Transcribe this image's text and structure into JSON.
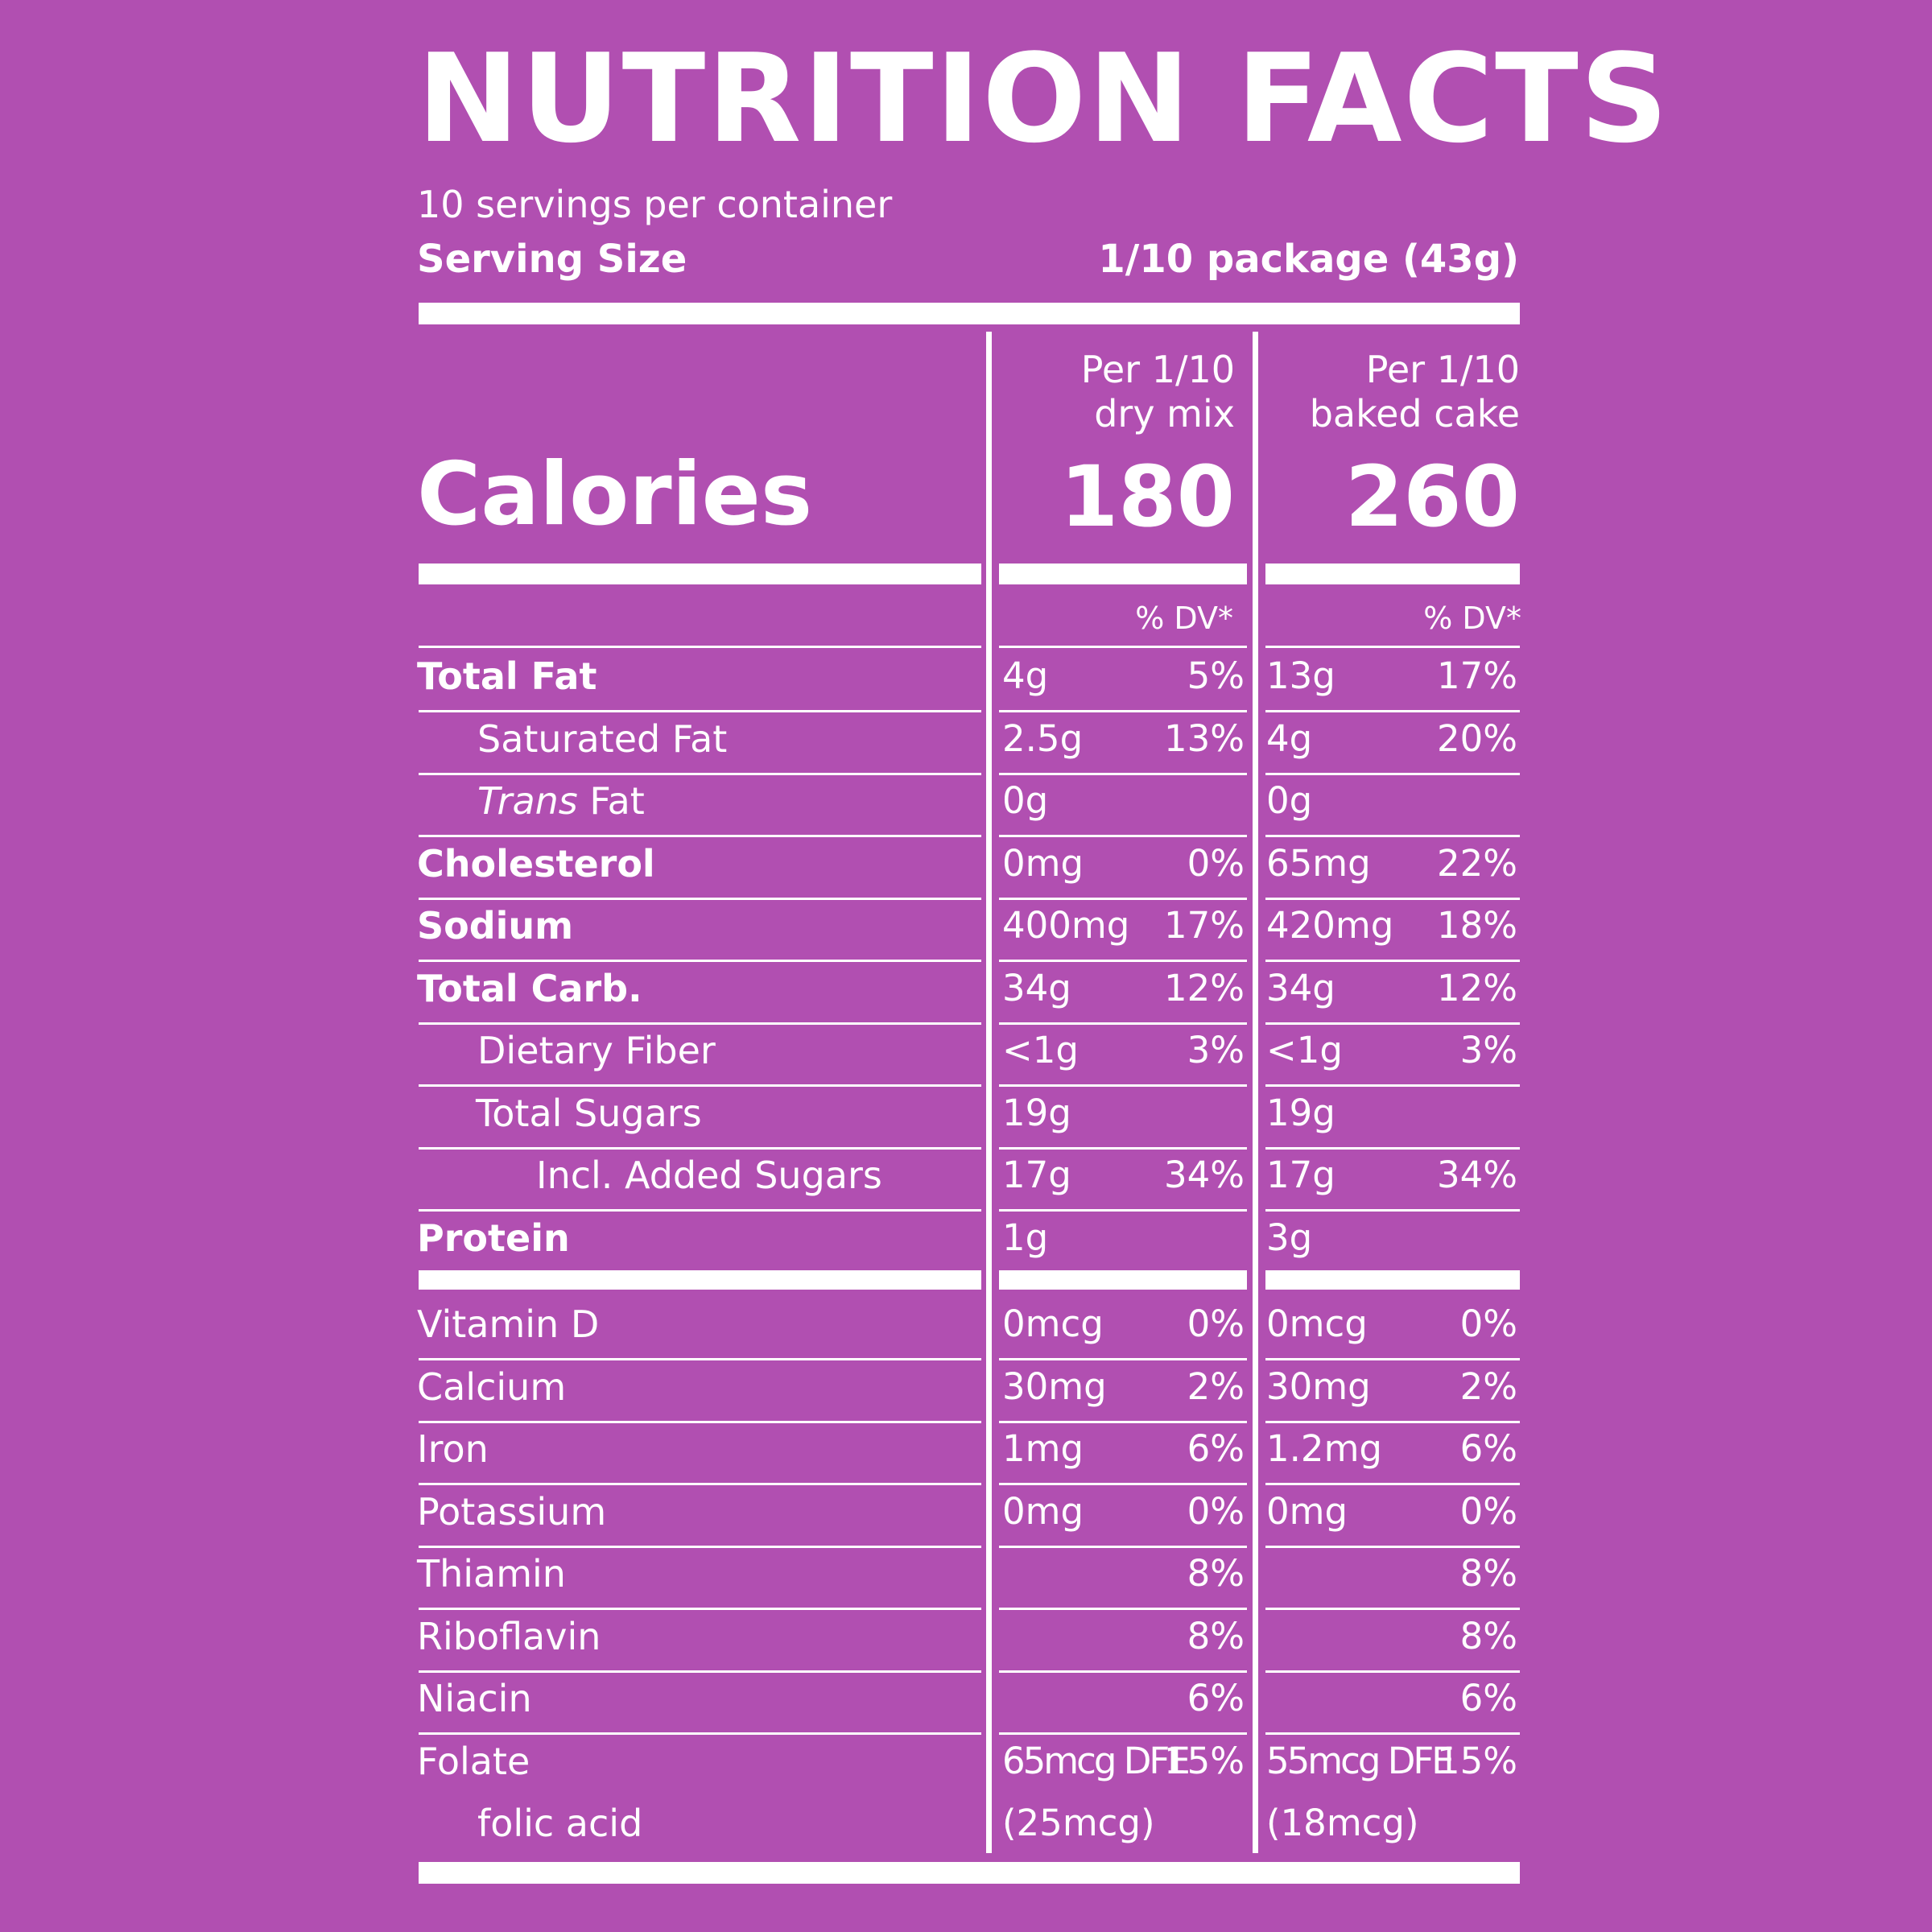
{
  "header": {
    "title": "NUTRITION FACTS",
    "servings_per_container": "10 servings per container",
    "serving_size_label": "Serving Size",
    "serving_size_value": "1/10 package (43g)"
  },
  "columns": [
    {
      "line1": "Per 1/10",
      "line2": "dry mix",
      "calories": "180",
      "dv_header": "% DV*"
    },
    {
      "line1": "Per 1/10",
      "line2": "baked cake",
      "calories": "260",
      "dv_header": "% DV*"
    }
  ],
  "calories_label": "Calories",
  "nutrients": [
    {
      "label": "Total Fat",
      "mix_amt": "4g",
      "mix_dv": "5%",
      "cake_amt": "13g",
      "cake_dv": "17%"
    },
    {
      "label": "Saturated Fat",
      "mix_amt": "2.5g",
      "mix_dv": "13%",
      "cake_amt": "4g",
      "cake_dv": "20%"
    },
    {
      "label_italic": "Trans",
      "label_rest": " Fat",
      "mix_amt": "0g",
      "mix_dv": "",
      "cake_amt": "0g",
      "cake_dv": ""
    },
    {
      "label": "Cholesterol",
      "mix_amt": "0mg",
      "mix_dv": "0%",
      "cake_amt": "65mg",
      "cake_dv": "22%"
    },
    {
      "label": "Sodium",
      "mix_amt": "400mg",
      "mix_dv": "17%",
      "cake_amt": "420mg",
      "cake_dv": "18%"
    },
    {
      "label": "Total Carb.",
      "mix_amt": "34g",
      "mix_dv": "12%",
      "cake_amt": "34g",
      "cake_dv": "12%"
    },
    {
      "label": "Dietary Fiber",
      "mix_amt": "<1g",
      "mix_dv": "3%",
      "cake_amt": "<1g",
      "cake_dv": "3%"
    },
    {
      "label": "Total Sugars",
      "mix_amt": "19g",
      "mix_dv": "",
      "cake_amt": "19g",
      "cake_dv": ""
    },
    {
      "label": "Incl. Added Sugars",
      "mix_amt": "17g",
      "mix_dv": "34%",
      "cake_amt": "17g",
      "cake_dv": "34%"
    },
    {
      "label": "Protein",
      "mix_amt": "1g",
      "mix_dv": "",
      "cake_amt": "3g",
      "cake_dv": ""
    }
  ],
  "vitamins": [
    {
      "label": "Vitamin D",
      "mix_amt": "0mcg",
      "mix_dv": "0%",
      "cake_amt": "0mcg",
      "cake_dv": "0%"
    },
    {
      "label": "Calcium",
      "mix_amt": "30mg",
      "mix_dv": "2%",
      "cake_amt": "30mg",
      "cake_dv": "2%"
    },
    {
      "label": "Iron",
      "mix_amt": "1mg",
      "mix_dv": "6%",
      "cake_amt": "1.2mg",
      "cake_dv": "6%"
    },
    {
      "label": "Potassium",
      "mix_amt": "0mg",
      "mix_dv": "0%",
      "cake_amt": "0mg",
      "cake_dv": "0%"
    },
    {
      "label": "Thiamin",
      "mix_amt": "",
      "mix_dv": "8%",
      "cake_amt": "",
      "cake_dv": "8%"
    },
    {
      "label": "Riboflavin",
      "mix_amt": "",
      "mix_dv": "8%",
      "cake_amt": "",
      "cake_dv": "8%"
    },
    {
      "label": "Niacin",
      "mix_amt": "",
      "mix_dv": "6%",
      "cake_amt": "",
      "cake_dv": "6%"
    },
    {
      "label": "Folate",
      "mix_amt": "65mcg DFE",
      "mix_dv": "15%",
      "cake_amt": "55mcg DFE",
      "cake_dv": "15%"
    },
    {
      "label": "folic acid",
      "mix_amt": "(25mcg)",
      "mix_dv": "",
      "cake_amt": "(18mcg)",
      "cake_dv": ""
    }
  ],
  "colors": {
    "background": "#b14fb1",
    "text": "#ffffff"
  }
}
